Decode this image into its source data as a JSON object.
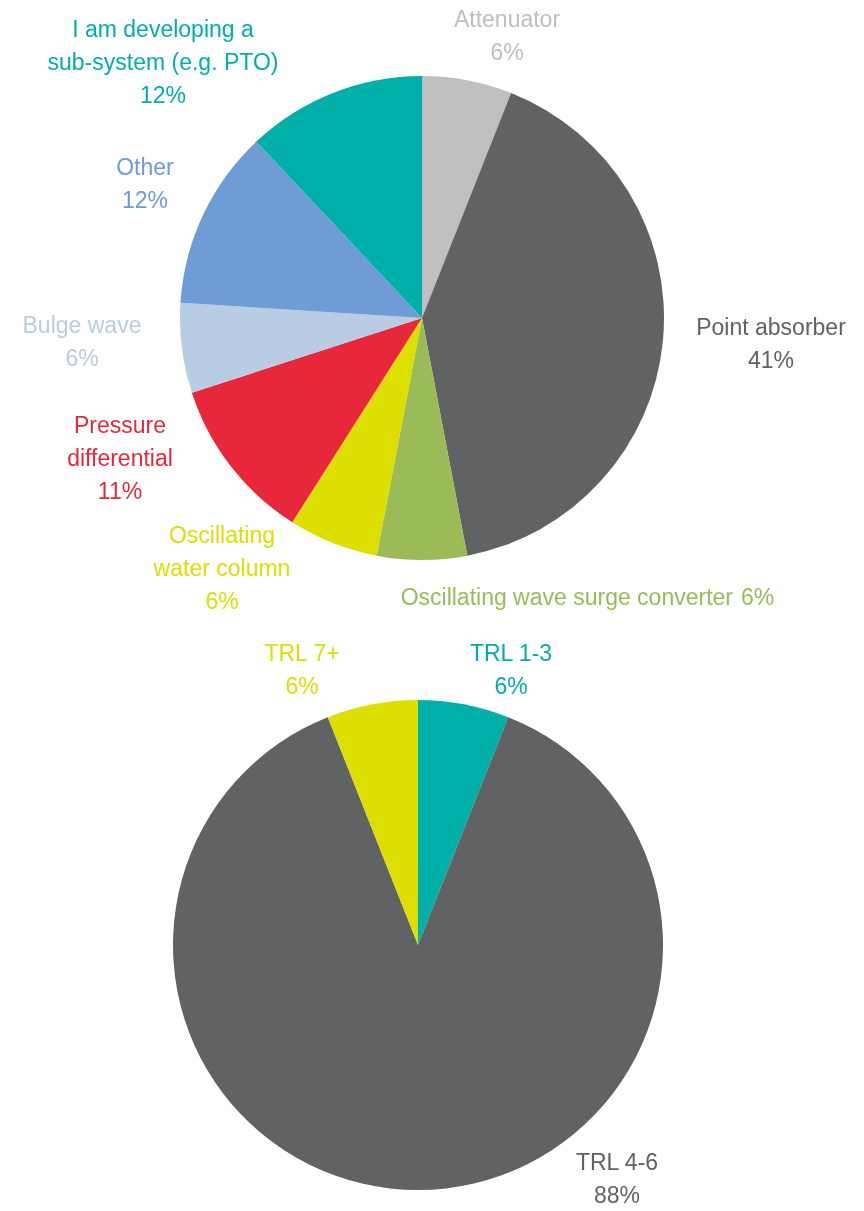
{
  "chart_data": [
    {
      "type": "pie",
      "categories": [
        "Attenuator",
        "Point absorber",
        "Oscillating wave surge converter",
        "Oscillating water column",
        "Pressure differential",
        "Bulge wave",
        "Other",
        "I am developing a sub-system (e.g. PTO)"
      ],
      "values": [
        6,
        41,
        6,
        6,
        11,
        6,
        12,
        12
      ],
      "colors": [
        "#bfbfbf",
        "#616264",
        "#9bbb59",
        "#dddf00",
        "#e8283a",
        "#b8cce4",
        "#6f9bd6",
        "#00b0a8"
      ],
      "value_labels": [
        "6%",
        "41%",
        "6%",
        "6%",
        "11%",
        "6%",
        "12%",
        "12%"
      ]
    },
    {
      "type": "pie",
      "categories": [
        "TRL 1-3",
        "TRL 4-6",
        "TRL 7+"
      ],
      "values": [
        6,
        88,
        6
      ],
      "colors": [
        "#00b0a8",
        "#616264",
        "#dddf00"
      ],
      "value_labels": [
        "6%",
        "88%",
        "6%"
      ]
    }
  ]
}
